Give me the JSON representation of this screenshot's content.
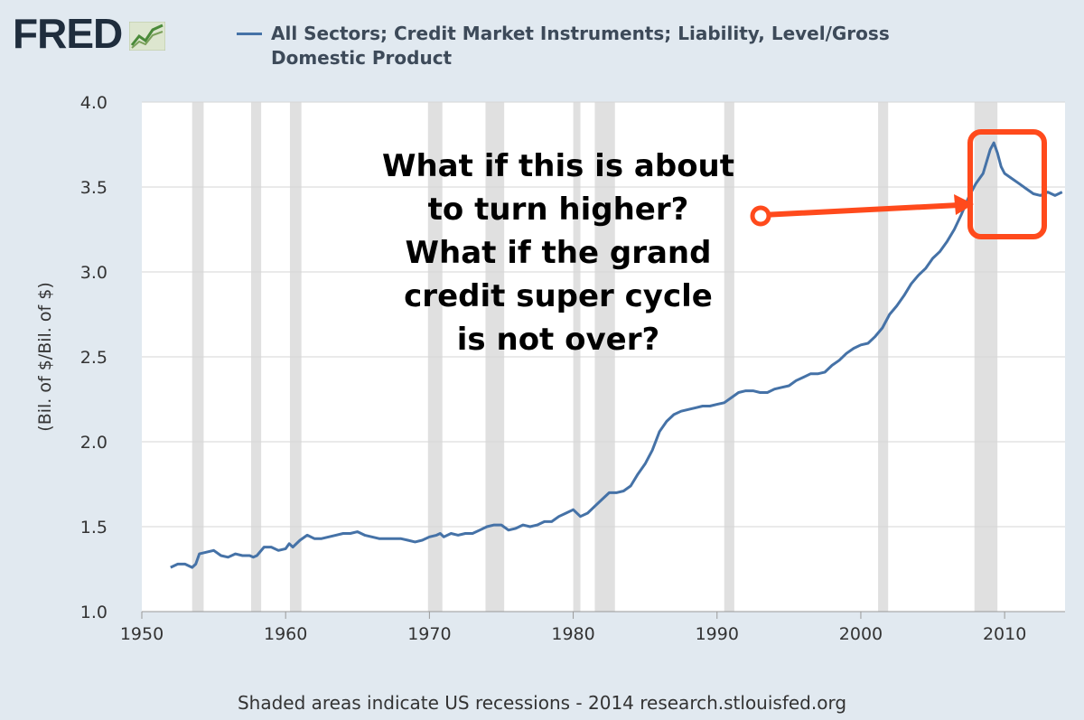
{
  "logo": {
    "text": "FRED",
    "icon": "fred-chart-icon"
  },
  "source_note": "Shaded areas indicate US recessions - 2014 research.stlouisfed.org",
  "annotation": {
    "lines": [
      "What if this is about",
      "to turn higher?",
      "What if the grand",
      "credit super cycle",
      "is not over?"
    ]
  },
  "colors": {
    "background": "#e1e9f0",
    "plot_background": "#ffffff",
    "series": "#4572a7",
    "recession": "#e0e0e0",
    "highlight": "#ff4a1c"
  },
  "chart_data": {
    "type": "line",
    "title": "",
    "xlabel": "",
    "ylabel": "(Bil. of $/Bil. of $)",
    "xlim": [
      1950,
      2014.2
    ],
    "ylim": [
      1.0,
      4.0
    ],
    "x_ticks": [
      "1950",
      "1960",
      "1970",
      "1980",
      "1990",
      "2000",
      "2010"
    ],
    "y_ticks": [
      "1.0",
      "1.5",
      "2.0",
      "2.5",
      "3.0",
      "3.5",
      "4.0"
    ],
    "grid": "horizontal",
    "legend": "top",
    "recessions": [
      [
        1953.5,
        1954.3
      ],
      [
        1957.6,
        1958.3
      ],
      [
        1960.3,
        1961.1
      ],
      [
        1969.9,
        1970.9
      ],
      [
        1973.9,
        1975.2
      ],
      [
        1980.0,
        1980.5
      ],
      [
        1981.5,
        1982.9
      ],
      [
        1990.5,
        1991.2
      ],
      [
        2001.2,
        2001.9
      ],
      [
        2007.9,
        2009.5
      ]
    ],
    "series": [
      {
        "name": "All Sectors; Credit Market Instruments; Liability, Level/Gross Domestic Product",
        "x": [
          1952.0,
          1952.5,
          1953.0,
          1953.5,
          1953.75,
          1954.0,
          1954.5,
          1955.0,
          1955.5,
          1956.0,
          1956.5,
          1957.0,
          1957.5,
          1957.75,
          1958.0,
          1958.5,
          1959.0,
          1959.5,
          1960.0,
          1960.25,
          1960.5,
          1961.0,
          1961.5,
          1962.0,
          1962.5,
          1963.0,
          1963.5,
          1964.0,
          1964.5,
          1965.0,
          1965.5,
          1966.0,
          1966.5,
          1967.0,
          1967.5,
          1968.0,
          1968.5,
          1969.0,
          1969.5,
          1970.0,
          1970.5,
          1970.75,
          1971.0,
          1971.5,
          1972.0,
          1972.5,
          1973.0,
          1973.5,
          1974.0,
          1974.5,
          1975.0,
          1975.5,
          1976.0,
          1976.5,
          1977.0,
          1977.5,
          1978.0,
          1978.5,
          1979.0,
          1979.5,
          1980.0,
          1980.5,
          1981.0,
          1981.5,
          1982.0,
          1982.5,
          1983.0,
          1983.5,
          1984.0,
          1984.5,
          1985.0,
          1985.5,
          1986.0,
          1986.5,
          1987.0,
          1987.5,
          1988.0,
          1988.5,
          1989.0,
          1989.5,
          1990.0,
          1990.5,
          1991.0,
          1991.5,
          1992.0,
          1992.5,
          1993.0,
          1993.5,
          1994.0,
          1994.5,
          1995.0,
          1995.5,
          1996.0,
          1996.5,
          1997.0,
          1997.5,
          1998.0,
          1998.5,
          1999.0,
          1999.5,
          2000.0,
          2000.5,
          2001.0,
          2001.5,
          2002.0,
          2002.5,
          2003.0,
          2003.5,
          2004.0,
          2004.5,
          2005.0,
          2005.5,
          2006.0,
          2006.5,
          2007.0,
          2007.5,
          2008.0,
          2008.5,
          2009.0,
          2009.25,
          2009.5,
          2009.75,
          2010.0,
          2010.5,
          2011.0,
          2011.5,
          2012.0,
          2012.5,
          2013.0,
          2013.5,
          2014.0
        ],
        "values": [
          1.26,
          1.28,
          1.28,
          1.26,
          1.28,
          1.34,
          1.35,
          1.36,
          1.33,
          1.32,
          1.34,
          1.33,
          1.33,
          1.32,
          1.33,
          1.38,
          1.38,
          1.36,
          1.37,
          1.4,
          1.38,
          1.42,
          1.45,
          1.43,
          1.43,
          1.44,
          1.45,
          1.46,
          1.46,
          1.47,
          1.45,
          1.44,
          1.43,
          1.43,
          1.43,
          1.43,
          1.42,
          1.41,
          1.42,
          1.44,
          1.45,
          1.46,
          1.44,
          1.46,
          1.45,
          1.46,
          1.46,
          1.48,
          1.5,
          1.51,
          1.51,
          1.48,
          1.49,
          1.51,
          1.5,
          1.51,
          1.53,
          1.53,
          1.56,
          1.58,
          1.6,
          1.56,
          1.58,
          1.62,
          1.66,
          1.7,
          1.7,
          1.71,
          1.74,
          1.81,
          1.87,
          1.95,
          2.06,
          2.12,
          2.16,
          2.18,
          2.19,
          2.2,
          2.21,
          2.21,
          2.22,
          2.23,
          2.26,
          2.29,
          2.3,
          2.3,
          2.29,
          2.29,
          2.31,
          2.32,
          2.33,
          2.36,
          2.38,
          2.4,
          2.4,
          2.41,
          2.45,
          2.48,
          2.52,
          2.55,
          2.57,
          2.58,
          2.62,
          2.67,
          2.75,
          2.8,
          2.86,
          2.93,
          2.98,
          3.02,
          3.08,
          3.12,
          3.18,
          3.25,
          3.34,
          3.44,
          3.52,
          3.58,
          3.72,
          3.76,
          3.7,
          3.62,
          3.58,
          3.55,
          3.52,
          3.49,
          3.46,
          3.45,
          3.47,
          3.45,
          3.47
        ]
      }
    ]
  }
}
